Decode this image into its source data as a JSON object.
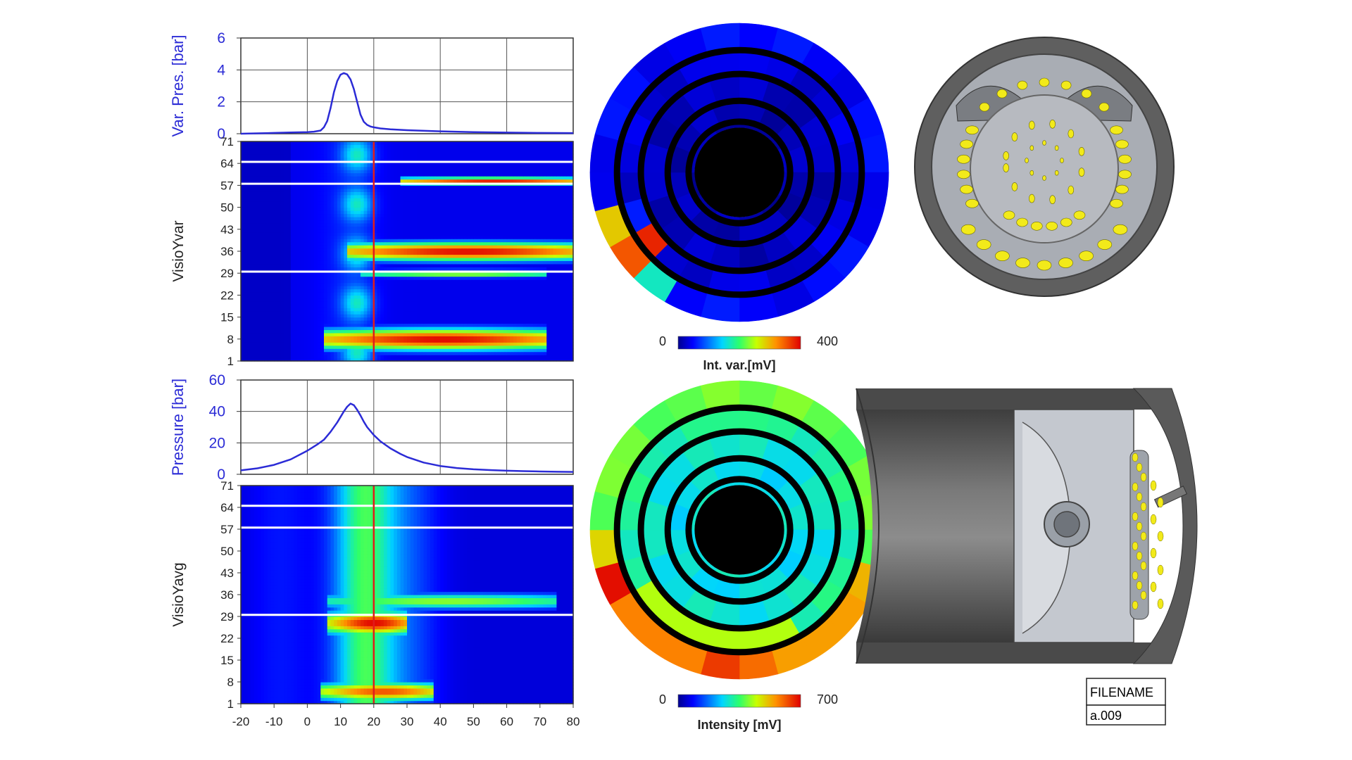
{
  "chart_data": [
    {
      "id": "var-pres",
      "type": "line",
      "ylabel": "Var. Pres. [bar]",
      "ylim": [
        0,
        6
      ],
      "yticks": [
        0,
        2,
        4,
        6
      ],
      "xlim": [
        -20,
        80
      ],
      "grid": true,
      "line_color": "#2b2bd6",
      "series": [
        {
          "x": [
            -20,
            -10,
            -5,
            0,
            2,
            4,
            5,
            6,
            7,
            8,
            9,
            10,
            11,
            12,
            13,
            14,
            15,
            16,
            17,
            18,
            19,
            20,
            22,
            25,
            30,
            40,
            50,
            60,
            70,
            80
          ],
          "y": [
            0.0,
            0.05,
            0.08,
            0.1,
            0.13,
            0.2,
            0.4,
            0.8,
            1.6,
            2.6,
            3.3,
            3.7,
            3.8,
            3.72,
            3.4,
            2.8,
            2.0,
            1.2,
            0.75,
            0.55,
            0.45,
            0.4,
            0.33,
            0.28,
            0.22,
            0.15,
            0.1,
            0.07,
            0.05,
            0.04
          ]
        }
      ]
    },
    {
      "id": "visio-yvar",
      "type": "heatmap",
      "ylabel": "VisioYvar",
      "ylim": [
        1,
        71
      ],
      "yticks": [
        1,
        8,
        15,
        22,
        29,
        36,
        43,
        50,
        57,
        64,
        71
      ],
      "xlim": [
        -20,
        80
      ],
      "vline_x": 20,
      "hlines_y": [
        29.5,
        57.5,
        64.5
      ],
      "hot_bands": [
        {
          "y": 36,
          "y_spread": 3,
          "x_start": 16,
          "x_end": 80,
          "peak": 1.0
        },
        {
          "y": 8,
          "y_spread": 3.5,
          "x_start": 9,
          "x_end": 72,
          "peak": 1.0
        },
        {
          "y": 58.5,
          "y_spread": 1.2,
          "x_start": 32,
          "x_end": 80,
          "peak": 0.95
        },
        {
          "y": 29,
          "y_spread": 1.3,
          "x_start": 20,
          "x_end": 72,
          "peak": 0.65
        }
      ]
    },
    {
      "id": "pressure",
      "type": "line",
      "ylabel": "Pressure [bar]",
      "ylim": [
        0,
        60
      ],
      "yticks": [
        0,
        20,
        40,
        60
      ],
      "xlim": [
        -20,
        80
      ],
      "grid": true,
      "line_color": "#2b2bd6",
      "series": [
        {
          "x": [
            -20,
            -15,
            -10,
            -5,
            0,
            3,
            5,
            7,
            9,
            11,
            12,
            13,
            14,
            15,
            16,
            17,
            18,
            20,
            22,
            25,
            28,
            30,
            35,
            40,
            45,
            50,
            55,
            60,
            65,
            70,
            75,
            80
          ],
          "y": [
            2.5,
            3.8,
            6,
            9.5,
            15,
            19,
            22,
            27,
            33,
            40,
            43,
            45,
            44,
            41,
            37.5,
            33.5,
            30,
            25,
            21,
            16.5,
            13,
            11,
            7.5,
            5.3,
            4,
            3.2,
            2.7,
            2.3,
            2,
            1.8,
            1.6,
            1.5
          ]
        }
      ]
    },
    {
      "id": "visio-yavg",
      "type": "heatmap",
      "ylabel": "VisioYavg",
      "ylim": [
        1,
        71
      ],
      "yticks": [
        1,
        8,
        15,
        22,
        29,
        36,
        43,
        50,
        57,
        64,
        71
      ],
      "xlim": [
        -20,
        80
      ],
      "xticks": [
        -20,
        -10,
        0,
        10,
        20,
        30,
        40,
        50,
        60,
        70,
        80
      ],
      "vline_x": 20,
      "hlines_y": [
        29.5,
        57.5,
        64.5
      ],
      "hot_bands": [
        {
          "y": 27,
          "y_spread": 4,
          "x_start": 10,
          "x_end": 30,
          "peak": 1.0
        },
        {
          "y": 34,
          "y_spread": 2.5,
          "x_start": 10,
          "x_end": 75,
          "peak": 0.6
        },
        {
          "y": 5,
          "y_spread": 3,
          "x_start": 8,
          "x_end": 38,
          "peak": 0.9
        }
      ]
    },
    {
      "id": "int-var-disc",
      "type": "heatmap",
      "colorbar_min": "0",
      "colorbar_max": "400",
      "colorbar_title": "Int. var.[mV]",
      "rings": [
        {
          "r_outer": 1.0,
          "r_inner": 0.82,
          "segments": 24,
          "base": 0.12,
          "hot": [
            {
              "from": 14,
              "to": 15,
              "v": 0.42
            },
            {
              "from": 15,
              "to": 16,
              "v": 0.88
            },
            {
              "from": 16,
              "to": 17,
              "v": 0.72
            }
          ]
        },
        {
          "r_outer": 0.82,
          "r_inner": 0.66,
          "segments": 24,
          "base": 0.08,
          "hot": [
            {
              "from": 15,
              "to": 16,
              "v": 0.95
            },
            {
              "from": 16,
              "to": 17,
              "v": 0.15
            }
          ]
        },
        {
          "r_outer": 0.66,
          "r_inner": 0.48,
          "segments": 20,
          "base": 0.05,
          "hot": []
        },
        {
          "r_outer": 0.48,
          "r_inner": 0.34,
          "segments": 16,
          "base": 0.04,
          "hot": []
        },
        {
          "r_outer": 0.34,
          "r_inner": 0.3,
          "segments": 12,
          "base": 0.03,
          "hot": []
        }
      ]
    },
    {
      "id": "intensity-disc",
      "type": "heatmap",
      "colorbar_min": "0",
      "colorbar_max": "700",
      "colorbar_title": "Intensity [mV]",
      "rings": [
        {
          "r_outer": 1.0,
          "r_inner": 0.82,
          "segments": 24,
          "base": 0.55,
          "hot": [
            {
              "from": 12,
              "to": 13,
              "v": 0.92
            },
            {
              "from": 8,
              "to": 11,
              "v": 0.78
            },
            {
              "from": 11,
              "to": 12,
              "v": 0.85
            },
            {
              "from": 13,
              "to": 16,
              "v": 0.82
            },
            {
              "from": 16,
              "to": 17,
              "v": 0.98
            },
            {
              "from": 17,
              "to": 18,
              "v": 0.7
            },
            {
              "from": 7,
              "to": 8,
              "v": 0.75
            }
          ]
        },
        {
          "r_outer": 0.82,
          "r_inner": 0.66,
          "segments": 24,
          "base": 0.45,
          "hot": [
            {
              "from": 10,
              "to": 16,
              "v": 0.62
            }
          ]
        },
        {
          "r_outer": 0.66,
          "r_inner": 0.48,
          "segments": 20,
          "base": 0.4,
          "hot": []
        },
        {
          "r_outer": 0.48,
          "r_inner": 0.34,
          "segments": 16,
          "base": 0.38,
          "hot": []
        },
        {
          "r_outer": 0.34,
          "r_inner": 0.3,
          "segments": 12,
          "base": 0.4,
          "hot": []
        }
      ]
    }
  ],
  "filename_box": {
    "label": "FILENAME",
    "value": "a.009"
  },
  "colors": {
    "line": "#2b2bd6",
    "marker_vline": "#e01b1b",
    "hline": "#ffffff",
    "cylinder_gray": "#5a5a5a",
    "injector_yellow": "#f2ea1a"
  }
}
